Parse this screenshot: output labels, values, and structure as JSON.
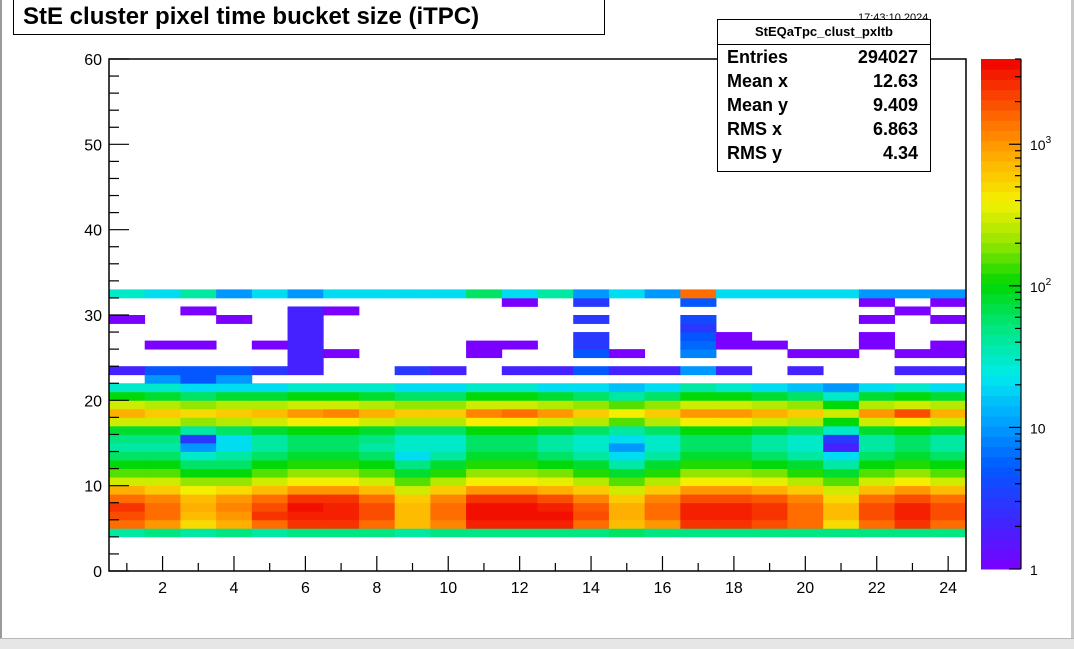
{
  "title": "StE cluster pixel time bucket size (iTPC)",
  "timestamp": "17:43:10 2024",
  "stats": {
    "name": "StEQaTpc_clust_pxltb",
    "rows": [
      {
        "key": "Entries",
        "value": "294027"
      },
      {
        "key": "Mean x",
        "value": "12.63"
      },
      {
        "key": "Mean y",
        "value": "9.409"
      },
      {
        "key": "RMS x",
        "value": "6.863"
      },
      {
        "key": "RMS y",
        "value": "4.34"
      }
    ]
  },
  "chart_data": {
    "type": "heatmap",
    "title": "StE cluster pixel time bucket size (iTPC)",
    "xlabel": "",
    "ylabel": "",
    "xlim": [
      0.5,
      24.5
    ],
    "ylim": [
      0,
      60
    ],
    "x_ticks": [
      "2",
      "4",
      "6",
      "8",
      "10",
      "12",
      "14",
      "16",
      "18",
      "20",
      "22",
      "24"
    ],
    "y_ticks": [
      "0",
      "10",
      "20",
      "30",
      "40",
      "50",
      "60"
    ],
    "z_scale": "log",
    "zlim": [
      1,
      4000
    ],
    "z_ticks": [
      {
        "label": "1",
        "value": 1
      },
      {
        "label": "10",
        "value": 10
      },
      {
        "label": "10",
        "sup": "2",
        "value": 100
      },
      {
        "label": "10",
        "sup": "3",
        "value": 1000
      }
    ],
    "x_bins": [
      1,
      2,
      3,
      4,
      5,
      6,
      7,
      8,
      9,
      10,
      11,
      12,
      13,
      14,
      15,
      16,
      17,
      18,
      19,
      20,
      21,
      22,
      23,
      24
    ],
    "y_bins": [
      4,
      5,
      6,
      7,
      8,
      9,
      10,
      11,
      12,
      13,
      14,
      15,
      16,
      17,
      18,
      19,
      20,
      21,
      22,
      23,
      24,
      25,
      26,
      27,
      28,
      29,
      30,
      31,
      32
    ],
    "z_values": [
      [
        40,
        50,
        40,
        50,
        40,
        50,
        50,
        50,
        40,
        50,
        50,
        50,
        50,
        50,
        60,
        50,
        50,
        50,
        50,
        50,
        50,
        50,
        50,
        50
      ],
      [
        1500,
        1000,
        500,
        800,
        1500,
        2500,
        2500,
        1500,
        700,
        1200,
        3000,
        3000,
        3000,
        1500,
        700,
        1000,
        2500,
        2500,
        2000,
        1500,
        500,
        1500,
        2500,
        1500
      ],
      [
        2000,
        1500,
        700,
        1000,
        2500,
        3000,
        3000,
        2000,
        700,
        1500,
        3500,
        3500,
        3500,
        2000,
        800,
        1500,
        3000,
        3000,
        2500,
        1500,
        700,
        2000,
        3000,
        2000
      ],
      [
        2500,
        1500,
        800,
        1200,
        2000,
        3500,
        3000,
        2000,
        700,
        1500,
        3500,
        3500,
        3000,
        1800,
        800,
        1500,
        3000,
        3000,
        2500,
        1500,
        700,
        2000,
        3000,
        2000
      ],
      [
        1500,
        1200,
        700,
        1000,
        1500,
        2500,
        2500,
        1500,
        600,
        1200,
        2500,
        2500,
        2000,
        1200,
        600,
        1200,
        2000,
        2000,
        1800,
        1200,
        500,
        1500,
        2000,
        1500
      ],
      [
        800,
        600,
        400,
        500,
        700,
        1000,
        1000,
        700,
        300,
        600,
        1000,
        1000,
        800,
        600,
        300,
        600,
        1000,
        1000,
        800,
        600,
        300,
        700,
        1000,
        700
      ],
      [
        300,
        300,
        200,
        200,
        300,
        400,
        400,
        300,
        150,
        250,
        400,
        400,
        350,
        250,
        150,
        250,
        400,
        400,
        350,
        250,
        150,
        300,
        400,
        300
      ],
      [
        150,
        150,
        100,
        100,
        150,
        200,
        200,
        150,
        80,
        120,
        200,
        200,
        180,
        120,
        80,
        120,
        200,
        200,
        180,
        120,
        80,
        150,
        200,
        150
      ],
      [
        100,
        100,
        60,
        60,
        100,
        120,
        120,
        100,
        50,
        80,
        120,
        120,
        100,
        80,
        40,
        80,
        120,
        120,
        100,
        80,
        40,
        100,
        120,
        100
      ],
      [
        60,
        60,
        30,
        40,
        60,
        80,
        80,
        60,
        20,
        40,
        80,
        80,
        60,
        40,
        20,
        40,
        80,
        80,
        60,
        40,
        20,
        60,
        80,
        60
      ],
      [
        40,
        40,
        10,
        20,
        40,
        60,
        60,
        40,
        30,
        30,
        60,
        60,
        40,
        30,
        10,
        30,
        60,
        60,
        40,
        30,
        2,
        40,
        60,
        40
      ],
      [
        50,
        50,
        3,
        20,
        40,
        60,
        60,
        50,
        30,
        30,
        60,
        60,
        40,
        30,
        20,
        30,
        60,
        60,
        40,
        30,
        3,
        40,
        60,
        40
      ],
      [
        80,
        80,
        40,
        60,
        80,
        100,
        100,
        80,
        60,
        60,
        100,
        100,
        80,
        60,
        40,
        60,
        100,
        100,
        80,
        60,
        30,
        80,
        100,
        80
      ],
      [
        300,
        300,
        200,
        250,
        300,
        400,
        400,
        300,
        250,
        250,
        400,
        400,
        300,
        250,
        150,
        250,
        400,
        400,
        300,
        250,
        100,
        300,
        400,
        300
      ],
      [
        800,
        600,
        500,
        600,
        700,
        1000,
        1200,
        800,
        600,
        600,
        1200,
        1500,
        1000,
        600,
        400,
        600,
        1000,
        1000,
        800,
        600,
        300,
        1000,
        2000,
        800
      ],
      [
        300,
        250,
        200,
        250,
        250,
        300,
        300,
        250,
        200,
        200,
        300,
        300,
        250,
        200,
        150,
        200,
        300,
        300,
        250,
        200,
        100,
        250,
        300,
        250
      ],
      [
        100,
        80,
        60,
        80,
        80,
        100,
        100,
        80,
        60,
        60,
        100,
        100,
        80,
        60,
        40,
        60,
        100,
        100,
        80,
        60,
        30,
        80,
        100,
        80
      ],
      [
        30,
        30,
        20,
        20,
        20,
        30,
        30,
        30,
        20,
        20,
        30,
        30,
        20,
        20,
        15,
        20,
        40,
        30,
        20,
        15,
        10,
        20,
        30,
        20
      ],
      [
        0,
        10,
        5,
        10,
        0,
        0,
        0,
        0,
        0,
        0,
        0,
        0,
        0,
        0,
        0,
        0,
        0,
        0,
        0,
        0,
        0,
        0,
        0,
        0
      ],
      [
        2,
        5,
        5,
        5,
        3,
        2,
        0,
        0,
        3,
        2,
        0,
        2,
        2,
        5,
        2,
        2,
        10,
        2,
        0,
        2,
        0,
        0,
        2,
        2
      ],
      [
        0,
        0,
        0,
        0,
        0,
        2,
        0,
        0,
        0,
        0,
        0,
        0,
        0,
        0,
        0,
        0,
        0,
        0,
        0,
        0,
        0,
        0,
        0,
        0
      ],
      [
        0,
        0,
        0,
        0,
        0,
        2,
        1,
        0,
        0,
        0,
        1,
        0,
        0,
        5,
        1,
        0,
        8,
        0,
        0,
        1,
        1,
        0,
        1,
        1
      ],
      [
        0,
        1,
        1,
        0,
        1,
        2,
        0,
        0,
        0,
        0,
        1,
        1,
        0,
        3,
        0,
        0,
        6,
        1,
        1,
        0,
        0,
        1,
        0,
        1
      ],
      [
        0,
        0,
        0,
        0,
        0,
        2,
        0,
        0,
        0,
        0,
        0,
        0,
        0,
        3,
        0,
        0,
        5,
        1,
        0,
        0,
        0,
        1,
        0,
        0
      ],
      [
        0,
        0,
        0,
        0,
        0,
        2,
        0,
        0,
        0,
        0,
        0,
        0,
        0,
        0,
        0,
        0,
        3,
        0,
        0,
        0,
        0,
        0,
        0,
        0
      ],
      [
        1,
        0,
        0,
        1,
        0,
        2,
        0,
        0,
        0,
        0,
        0,
        0,
        0,
        3,
        0,
        0,
        4,
        0,
        0,
        0,
        0,
        1,
        0,
        1
      ],
      [
        0,
        0,
        1,
        0,
        0,
        2,
        1,
        0,
        0,
        0,
        0,
        0,
        0,
        0,
        0,
        0,
        0,
        0,
        0,
        0,
        0,
        0,
        1,
        0
      ],
      [
        0,
        0,
        0,
        0,
        0,
        0,
        0,
        0,
        0,
        0,
        0,
        1,
        0,
        3,
        0,
        0,
        5,
        0,
        0,
        0,
        0,
        1,
        0,
        1
      ],
      [
        30,
        20,
        40,
        10,
        20,
        10,
        20,
        20,
        20,
        20,
        60,
        20,
        40,
        10,
        20,
        10,
        1500,
        20,
        20,
        20,
        20,
        10,
        10,
        10
      ]
    ]
  }
}
